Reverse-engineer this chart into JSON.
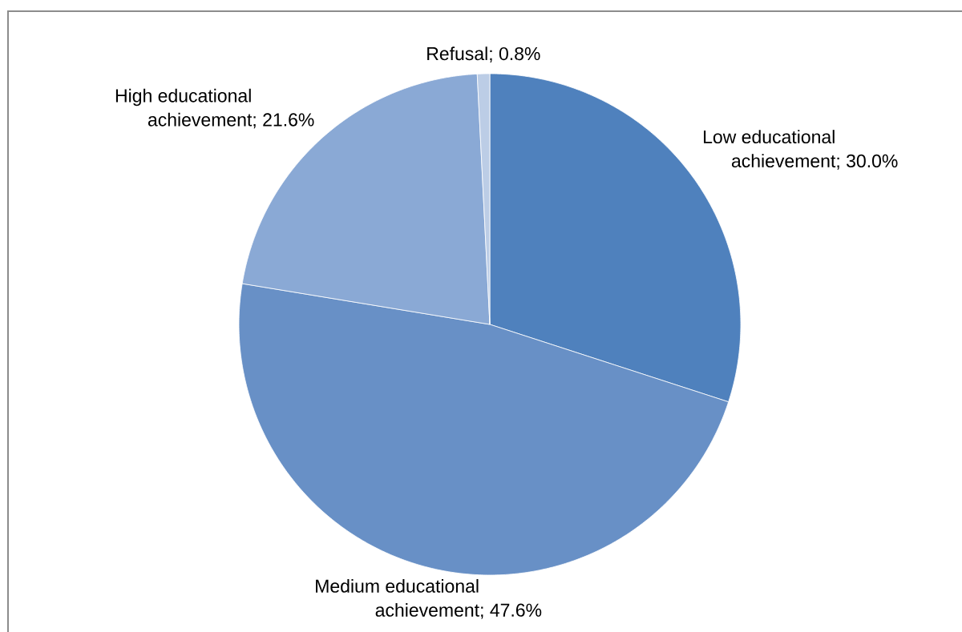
{
  "chart_data": {
    "type": "pie",
    "categories": [
      "Low educational achievement",
      "Medium educational achievement",
      "High educational achievement",
      "Refusal"
    ],
    "values": [
      30.0,
      47.6,
      21.6,
      0.8
    ],
    "colors": [
      "#4f81bd",
      "#6890c6",
      "#8aa9d5",
      "#bccde6"
    ],
    "value_labels": [
      "; 30.0%",
      "; 47.6%",
      "; 21.6%",
      "; 0.8%"
    ]
  }
}
